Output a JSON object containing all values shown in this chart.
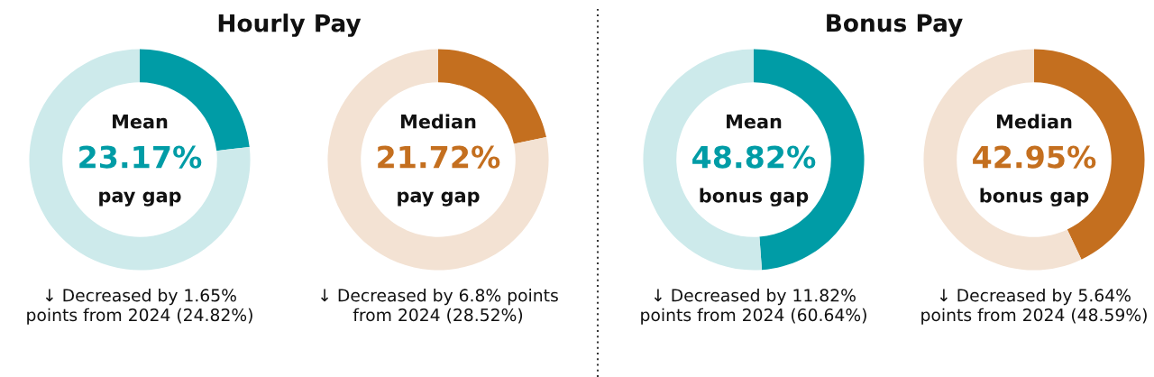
{
  "chart_data": [
    {
      "type": "donut",
      "title": "Hourly Pay",
      "categories": [
        null,
        null
      ],
      "values": [
        23.17,
        76.83
      ],
      "colors": [
        "#009ca6",
        "#cdeaeb"
      ],
      "value_labels": [
        "23.17%",
        null
      ],
      "annotations": [
        "Mean",
        "pay gap",
        "↓ Decreased by 1.65%\npoints from 2024 (24.82%)"
      ]
    },
    {
      "type": "donut",
      "categories": [
        null,
        null
      ],
      "values": [
        21.72,
        78.28
      ],
      "colors": [
        "#c46f1f",
        "#f3e2d3"
      ],
      "value_labels": [
        "21.72%",
        null
      ],
      "annotations": [
        "Median",
        "pay gap",
        "↓ Decreased by 6.8% points\nfrom 2024 (28.52%)"
      ]
    },
    {
      "type": "donut",
      "title": "Bonus Pay",
      "categories": [
        null,
        null
      ],
      "values": [
        48.82,
        51.18
      ],
      "colors": [
        "#009ca6",
        "#cdeaeb"
      ],
      "value_labels": [
        "48.82%",
        null
      ],
      "annotations": [
        "Mean",
        "bonus gap",
        "↓ Decreased by 11.82%\npoints from 2024 (60.64%)"
      ]
    },
    {
      "type": "donut",
      "categories": [
        null,
        null
      ],
      "values": [
        42.95,
        57.05
      ],
      "colors": [
        "#c46f1f",
        "#f3e2d3"
      ],
      "value_labels": [
        "42.95%",
        null
      ],
      "annotations": [
        "Median",
        "bonus gap",
        "↓ Decreased by 5.64%\npoints from 2024 (48.59%)"
      ]
    }
  ]
}
